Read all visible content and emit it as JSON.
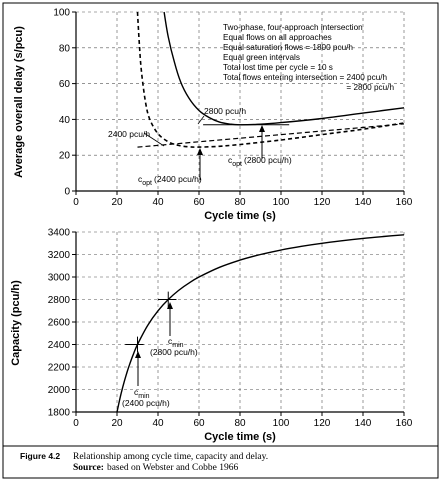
{
  "chart_data": [
    {
      "type": "line",
      "xlabel": "Cycle time  (s)",
      "ylabel": "Average overall delay (s/pcu)",
      "xlim": [
        0,
        160
      ],
      "ylim": [
        0,
        100
      ],
      "x_ticks": [
        "0",
        "20",
        "40",
        "60",
        "80",
        "100",
        "120",
        "140",
        "160"
      ],
      "y_ticks": [
        "0",
        "20",
        "40",
        "60",
        "80",
        "100"
      ],
      "grid": true,
      "notes": [
        "Two-phase, four-approach intersection",
        "Equal flows on all approaches",
        "Equal saturation flows = 1800 pcu/h",
        "Equal green intervals",
        "Total lost time per cycle = 10 s",
        "Total flows entering intersection = 2400 pcu/h",
        "= 2800 pcu/h"
      ],
      "series": [
        {
          "name": "2800 pcu/h",
          "x": [
            43,
            45,
            48,
            51,
            55,
            60,
            65,
            70,
            75,
            80,
            90,
            100,
            120,
            140,
            160
          ],
          "y": [
            100,
            86,
            72,
            61,
            52,
            45,
            41,
            38.5,
            37.4,
            37,
            37.3,
            38.2,
            40.5,
            43.5,
            46.5
          ]
        },
        {
          "name": "2400 pcu/h",
          "x": [
            30,
            31,
            32,
            34,
            36,
            40,
            45,
            50,
            55,
            60,
            70,
            80,
            100,
            120,
            140,
            160
          ],
          "y": [
            100,
            80,
            66,
            49,
            40,
            32,
            27.5,
            25.5,
            24.7,
            24.5,
            25,
            26,
            28.5,
            31.5,
            34.5,
            38
          ]
        }
      ],
      "annotations": [
        {
          "text": "2800 pcu/h",
          "x": 64,
          "y": 45
        },
        {
          "text": "2400 pcu/h",
          "x": 16,
          "y": 32
        },
        {
          "text": "c",
          "sub": "opt",
          "suffix": "(2400 pcu/h)",
          "x": 60,
          "y": 24.5
        },
        {
          "text": "c",
          "sub": "opt",
          "suffix": "(2800 pcu/h)",
          "x": 90,
          "y": 37
        }
      ]
    },
    {
      "type": "line",
      "xlabel": "Cycle time  (s)",
      "ylabel": "Capacity  (pcu/h)",
      "xlim": [
        0,
        160
      ],
      "ylim": [
        1800,
        3400
      ],
      "x_ticks": [
        "0",
        "20",
        "40",
        "60",
        "80",
        "100",
        "120",
        "140",
        "160"
      ],
      "y_ticks": [
        "1800",
        "2000",
        "2200",
        "2400",
        "2600",
        "2800",
        "3000",
        "3200",
        "3400"
      ],
      "grid": true,
      "series": [
        {
          "x": [
            20,
            22,
            24,
            26,
            28,
            30,
            35,
            40,
            45,
            50,
            55,
            60,
            70,
            80,
            90,
            100,
            110,
            120,
            130,
            140,
            150,
            160
          ],
          "y": [
            1800,
            1964,
            2100,
            2215,
            2314,
            2400,
            2571,
            2700,
            2800,
            2880,
            2945,
            3000,
            3086,
            3150,
            3200,
            3240,
            3273,
            3300,
            3323,
            3343,
            3360,
            3375
          ]
        }
      ],
      "annotations": [
        {
          "text": "c",
          "sub": "min",
          "suffix": "(2400 pcu/h)",
          "x": 30,
          "y": 2400
        },
        {
          "text": "c",
          "sub": "min",
          "suffix": "(2800 pcu/h)",
          "x": 45,
          "y": 2800
        }
      ]
    }
  ],
  "caption": {
    "label": "Figure 4.2",
    "text": "Relationship among cycle time, capacity and delay.",
    "source_label": "Source:",
    "source_text": "based on Webster and Cobbe 1966"
  }
}
